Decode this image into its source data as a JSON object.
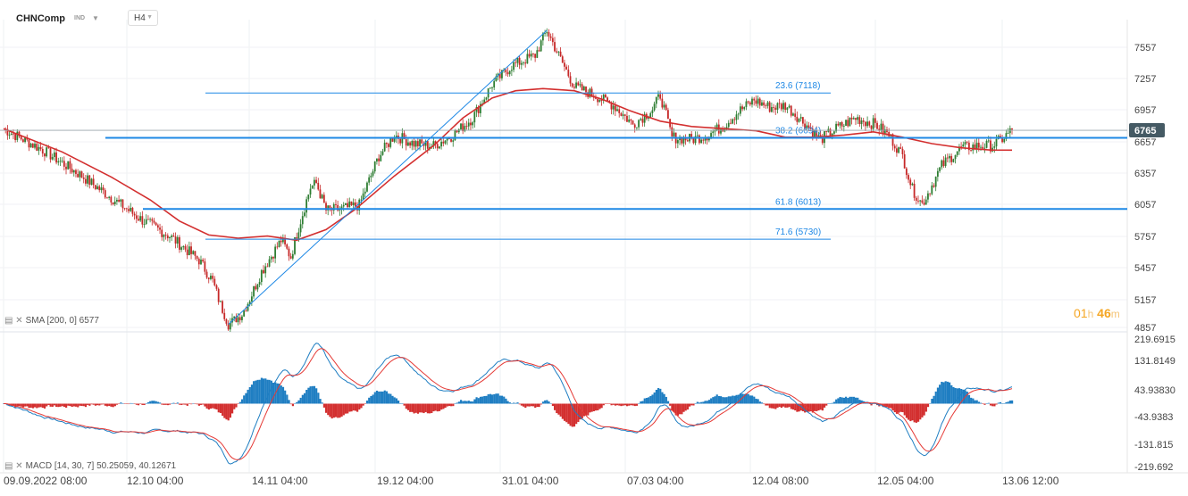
{
  "symbol": "CHNComp",
  "instrument_tag": "IND",
  "timeframe": "H4",
  "timer": {
    "hours": "01",
    "h_unit": "h",
    "minutes": "46",
    "m_unit": "m"
  },
  "sma_label": "SMA [200, 0] 6577",
  "macd_label": "MACD [14, 30, 7] 50.25059, 40.12671",
  "colors": {
    "bull": "#2e7d32",
    "bear": "#c62828",
    "sma": "#d32f2f",
    "level": "#1e88e5",
    "macd_pos": "#1f7ec2",
    "macd_neg": "#d32f2f",
    "price_tag": "#455a64"
  },
  "chart_data": [
    {
      "type": "candlestick",
      "x_ticks": [
        "09.09.2022 08:00",
        "12.10 04:00",
        "14.11 04:00",
        "19.12 04:00",
        "31.01 04:00",
        "07.03 04:00",
        "12.04 08:00",
        "12.05 04:00",
        "13.06 12:00"
      ],
      "y_ticks": [
        "7557",
        "7257",
        "6957",
        "6657",
        "6357",
        "6057",
        "5757",
        "5457",
        "5157",
        "4857"
      ],
      "ylim": [
        4857,
        7700
      ],
      "last_price": "6765",
      "close_path": [
        [
          0,
          6780
        ],
        [
          20,
          6580
        ],
        [
          40,
          6330
        ],
        [
          55,
          6120
        ],
        [
          70,
          5920
        ],
        [
          85,
          5760
        ],
        [
          100,
          5530
        ],
        [
          107,
          5330
        ],
        [
          112,
          5050
        ],
        [
          115,
          4890
        ],
        [
          122,
          5000
        ],
        [
          132,
          5420
        ],
        [
          142,
          5720
        ],
        [
          147,
          5560
        ],
        [
          150,
          5780
        ],
        [
          157,
          6220
        ],
        [
          160,
          6260
        ],
        [
          165,
          6000
        ],
        [
          172,
          6010
        ],
        [
          182,
          6050
        ],
        [
          192,
          6520
        ],
        [
          200,
          6720
        ],
        [
          210,
          6640
        ],
        [
          220,
          6620
        ],
        [
          230,
          6720
        ],
        [
          240,
          6880
        ],
        [
          250,
          7200
        ],
        [
          260,
          7380
        ],
        [
          272,
          7480
        ],
        [
          278,
          7720
        ],
        [
          284,
          7480
        ],
        [
          292,
          7180
        ],
        [
          302,
          7100
        ],
        [
          312,
          7000
        ],
        [
          322,
          6820
        ],
        [
          332,
          6960
        ],
        [
          336,
          7100
        ],
        [
          342,
          6700
        ],
        [
          352,
          6680
        ],
        [
          360,
          6720
        ],
        [
          368,
          6800
        ],
        [
          376,
          6940
        ],
        [
          384,
          7050
        ],
        [
          392,
          6980
        ],
        [
          400,
          7000
        ],
        [
          410,
          6830
        ],
        [
          418,
          6680
        ],
        [
          426,
          6780
        ],
        [
          436,
          6880
        ],
        [
          446,
          6820
        ],
        [
          453,
          6720
        ],
        [
          460,
          6520
        ],
        [
          465,
          6200
        ],
        [
          470,
          6060
        ],
        [
          474,
          6200
        ],
        [
          480,
          6430
        ],
        [
          490,
          6600
        ],
        [
          500,
          6620
        ],
        [
          506,
          6620
        ],
        [
          512,
          6700
        ],
        [
          516,
          6765
        ]
      ],
      "sma": {
        "name": "SMA [200, 0]",
        "points": [
          [
            0,
            6780
          ],
          [
            30,
            6560
          ],
          [
            55,
            6320
          ],
          [
            75,
            6100
          ],
          [
            90,
            5900
          ],
          [
            105,
            5770
          ],
          [
            120,
            5740
          ],
          [
            135,
            5760
          ],
          [
            150,
            5720
          ],
          [
            165,
            5820
          ],
          [
            180,
            6010
          ],
          [
            200,
            6330
          ],
          [
            220,
            6620
          ],
          [
            235,
            6880
          ],
          [
            250,
            7070
          ],
          [
            262,
            7140
          ],
          [
            276,
            7160
          ],
          [
            292,
            7140
          ],
          [
            306,
            7060
          ],
          [
            320,
            6950
          ],
          [
            336,
            6850
          ],
          [
            352,
            6800
          ],
          [
            368,
            6780
          ],
          [
            385,
            6760
          ],
          [
            400,
            6700
          ],
          [
            415,
            6700
          ],
          [
            430,
            6720
          ],
          [
            445,
            6750
          ],
          [
            460,
            6700
          ],
          [
            475,
            6640
          ],
          [
            490,
            6600
          ],
          [
            505,
            6578
          ],
          [
            516,
            6577
          ]
        ]
      },
      "levels": [
        {
          "label": "23.6 (7118)",
          "value": 7118
        },
        {
          "label": "38.2 (6694)",
          "value": 6694
        },
        {
          "label": "61.8 (6013)",
          "value": 6013
        },
        {
          "label": "71.6 (5730)",
          "value": 5730
        }
      ],
      "fib_anchor_low": {
        "t": 115,
        "price": 4890
      },
      "fib_anchor_high": {
        "t": 278,
        "price": 7720
      }
    },
    {
      "type": "histogram",
      "name": "MACD [14, 30, 7]",
      "y_ticks": [
        "219.6915",
        "131.8149",
        "43.93830",
        "-43.9383",
        "-131.815",
        "-219.692"
      ],
      "ylim": [
        -219.692,
        219.6915
      ],
      "macd_line_last": 50.25059,
      "signal_line_last": 40.12671
    }
  ]
}
